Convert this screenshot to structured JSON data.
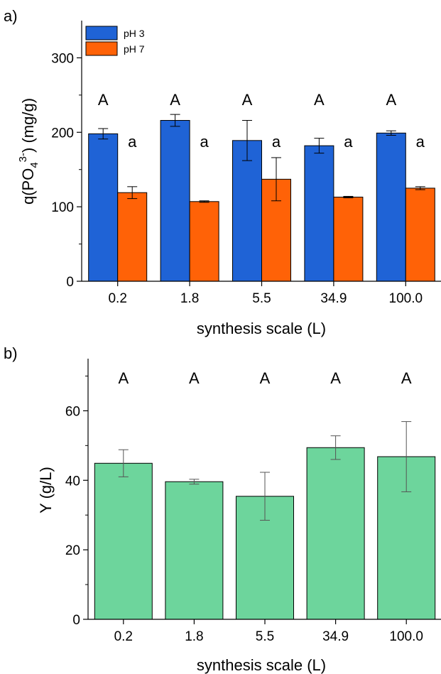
{
  "chart_data": [
    {
      "type": "bar",
      "panel_label": "a)",
      "categories": [
        "0.2",
        "1.8",
        "5.5",
        "34.9",
        "100.0"
      ],
      "xlabel": "synthesis scale (L)",
      "ylabel": "q(PO4 3-) (mg/g)",
      "ylabel_parts": {
        "base": "q(PO",
        "sub": "4",
        "sup": "3-",
        "rest": ") (mg/g)"
      },
      "ylim": [
        0,
        350
      ],
      "yticks": [
        0,
        100,
        200,
        300
      ],
      "legend_position": "top-left",
      "series": [
        {
          "name": "pH 3",
          "color": "#1f63d6",
          "values": [
            198,
            216,
            189,
            182,
            199
          ],
          "errors": [
            7,
            8,
            27,
            10,
            3
          ],
          "sig_labels": [
            "A",
            "A",
            "A",
            "A",
            "A"
          ]
        },
        {
          "name": "pH 7",
          "color": "#ff6207",
          "values": [
            119,
            107,
            137,
            113,
            125
          ],
          "errors": [
            8,
            1,
            29,
            1,
            2
          ],
          "sig_labels": [
            "a",
            "a",
            "a",
            "a",
            "a"
          ]
        }
      ]
    },
    {
      "type": "bar",
      "panel_label": "b)",
      "categories": [
        "0.2",
        "1.8",
        "5.5",
        "34.9",
        "100.0"
      ],
      "xlabel": "synthesis scale (L)",
      "ylabel": "Y (g/L)",
      "ylim": [
        0,
        75
      ],
      "yticks": [
        0,
        20,
        40,
        60
      ],
      "series": [
        {
          "color": "#6dd59c",
          "values": [
            44.9,
            39.6,
            35.4,
            49.4,
            46.8
          ],
          "errors": [
            3.9,
            0.7,
            6.9,
            3.4,
            10.1
          ],
          "sig_labels": [
            "A",
            "A",
            "A",
            "A",
            "A"
          ]
        }
      ]
    }
  ]
}
